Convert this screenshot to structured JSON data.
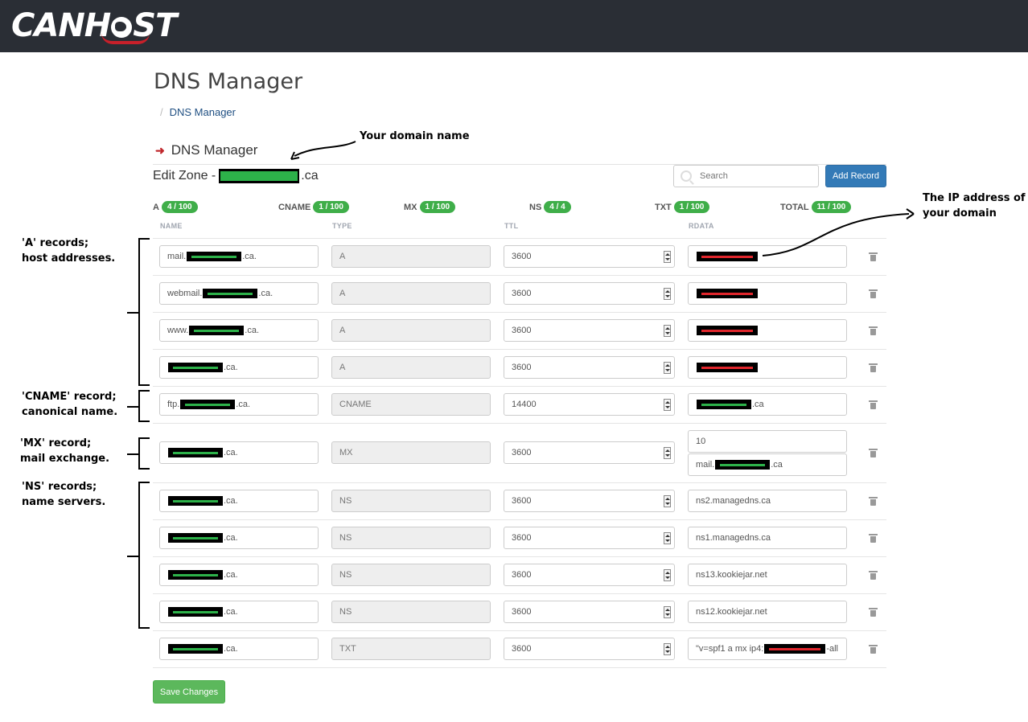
{
  "brand": {
    "logo_text_1": "CAN",
    "logo_text_2": "H",
    "logo_text_3": "ST"
  },
  "page": {
    "title": "DNS Manager",
    "breadcrumb": "DNS Manager",
    "subtitle": "DNS Manager",
    "edit_zone_prefix": "Edit Zone -",
    "edit_zone_suffix": ".ca"
  },
  "toolbar": {
    "search_placeholder": "Search",
    "add_record_label": "Add Record",
    "save_label": "Save Changes"
  },
  "counts": [
    {
      "label": "A",
      "value": "4 / 100"
    },
    {
      "label": "CNAME",
      "value": "1 / 100"
    },
    {
      "label": "MX",
      "value": "1 / 100"
    },
    {
      "label": "NS",
      "value": "4 / 4"
    },
    {
      "label": "TXT",
      "value": "1 / 100"
    },
    {
      "label": "TOTAL",
      "value": "11 / 100"
    }
  ],
  "columns": {
    "name": "NAME",
    "type": "TYPE",
    "ttl": "TTL",
    "rdata": "RDATA"
  },
  "records": [
    {
      "name_prefix": "mail.",
      "name_suffix": ".ca.",
      "type": "A",
      "ttl": "3600",
      "rdata_kind": "ip"
    },
    {
      "name_prefix": "webmail.",
      "name_suffix": ".ca.",
      "type": "A",
      "ttl": "3600",
      "rdata_kind": "ip"
    },
    {
      "name_prefix": "www.",
      "name_suffix": ".ca.",
      "type": "A",
      "ttl": "3600",
      "rdata_kind": "ip"
    },
    {
      "name_prefix": "",
      "name_suffix": ".ca.",
      "type": "A",
      "ttl": "3600",
      "rdata_kind": "ip"
    },
    {
      "name_prefix": "ftp.",
      "name_suffix": ".ca.",
      "type": "CNAME",
      "ttl": "14400",
      "rdata_kind": "domain",
      "rdata_suffix": ".ca"
    },
    {
      "name_prefix": "",
      "name_suffix": ".ca.",
      "type": "MX",
      "ttl": "3600",
      "rdata_kind": "mx",
      "mx_priority": "10",
      "mx_prefix": "mail.",
      "mx_suffix": ".ca"
    },
    {
      "name_prefix": "",
      "name_suffix": ".ca.",
      "type": "NS",
      "ttl": "3600",
      "rdata_kind": "text",
      "rdata": "ns2.managedns.ca"
    },
    {
      "name_prefix": "",
      "name_suffix": ".ca.",
      "type": "NS",
      "ttl": "3600",
      "rdata_kind": "text",
      "rdata": "ns1.managedns.ca"
    },
    {
      "name_prefix": "",
      "name_suffix": ".ca.",
      "type": "NS",
      "ttl": "3600",
      "rdata_kind": "text",
      "rdata": "ns13.kookiejar.net"
    },
    {
      "name_prefix": "",
      "name_suffix": ".ca.",
      "type": "NS",
      "ttl": "3600",
      "rdata_kind": "text",
      "rdata": "ns12.kookiejar.net"
    },
    {
      "name_prefix": "",
      "name_suffix": ".ca.",
      "type": "TXT",
      "ttl": "3600",
      "rdata_kind": "spf",
      "spf_prefix": "\"v=spf1 a mx ip4:",
      "spf_suffix": " -all"
    }
  ],
  "annotations": {
    "domain_name": "Your domain name",
    "ip_line1": "The IP address of",
    "ip_line2": "your domain",
    "a_line1": "'A' records;",
    "a_line2": "host addresses.",
    "cname_line1": "'CNAME' record;",
    "cname_line2": "canonical name.",
    "mx_line1": "'MX' record;",
    "mx_line2": "mail exchange.",
    "ns_line1": "'NS' records;",
    "ns_line2": "name servers."
  },
  "colors": {
    "header": "#2a2e35",
    "primary": "#337ab7",
    "success": "#5cb85c",
    "badge": "#3fae49",
    "redact_green": "#2db24a",
    "redact_red": "#e0262c"
  }
}
